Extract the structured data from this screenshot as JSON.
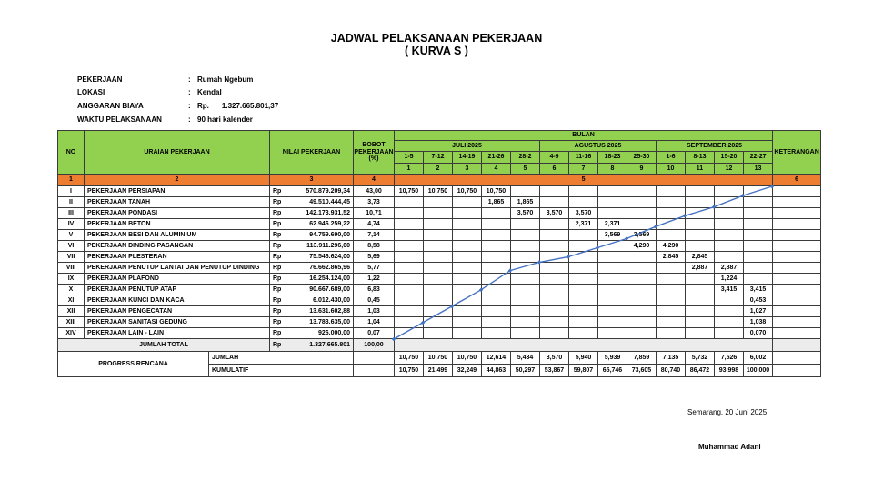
{
  "title": {
    "line1": "JADWAL PELAKSANAAN PEKERJAAN",
    "line2": "( KURVA S )"
  },
  "info": {
    "rows": [
      {
        "label": "PEKERJAAN",
        "colon": ":",
        "value": "Rumah Ngebum"
      },
      {
        "label": "LOKASI",
        "colon": ":",
        "value": "Kendal"
      },
      {
        "label": "ANGGARAN BIAYA",
        "colon": ":",
        "value": "Rp.",
        "value2": "1.327.665.801,37"
      },
      {
        "label": "WAKTU PELAKSANAAN",
        "colon": ":",
        "value": "90 hari kalender"
      }
    ]
  },
  "table": {
    "headers": {
      "no": "NO",
      "uraian": "URAIAN PEKERJAAN",
      "nilai": "NILAI PEKERJAAN",
      "bobot": "BOBOT PEKERJAAN (%)",
      "bulan": "BULAN",
      "keterangan": "KETERANGAN"
    },
    "months": [
      {
        "label": "JULI 2025",
        "span": 5
      },
      {
        "label": "AGUSTUS 2025",
        "span": 4
      },
      {
        "label": "SEPTEMBER 2025",
        "span": 4
      }
    ],
    "week_ranges": [
      "1-5",
      "7-12",
      "14-19",
      "21-26",
      "28-2",
      "4-9",
      "11-16",
      "18-23",
      "25-30",
      "1-6",
      "8-13",
      "15-20",
      "22-27"
    ],
    "week_numbers": [
      "1",
      "2",
      "3",
      "4",
      "5",
      "6",
      "7",
      "8",
      "9",
      "10",
      "11",
      "12",
      "13"
    ],
    "colnum_row": [
      "1",
      "2",
      "3",
      "4",
      "5",
      "6"
    ],
    "currency": "Rp",
    "rows": [
      {
        "no": "I",
        "uraian": "PEKERJAAN PERSIAPAN",
        "nilai": "570.879.209,34",
        "bobot": "43,00",
        "weeks": [
          "10,750",
          "10,750",
          "10,750",
          "10,750",
          "",
          "",
          "",
          "",
          "",
          "",
          "",
          "",
          ""
        ]
      },
      {
        "no": "II",
        "uraian": "PEKERJAAN TANAH",
        "nilai": "49.510.444,45",
        "bobot": "3,73",
        "weeks": [
          "",
          "",
          "",
          "1,865",
          "1,865",
          "",
          "",
          "",
          "",
          "",
          "",
          "",
          ""
        ]
      },
      {
        "no": "III",
        "uraian": "PEKERJAAN PONDASI",
        "nilai": "142.173.931,52",
        "bobot": "10,71",
        "weeks": [
          "",
          "",
          "",
          "",
          "3,570",
          "3,570",
          "3,570",
          "",
          "",
          "",
          "",
          "",
          ""
        ]
      },
      {
        "no": "IV",
        "uraian": "PEKERJAAN BETON",
        "nilai": "62.946.259,22",
        "bobot": "4,74",
        "weeks": [
          "",
          "",
          "",
          "",
          "",
          "",
          "2,371",
          "2,371",
          "",
          "",
          "",
          "",
          ""
        ]
      },
      {
        "no": "V",
        "uraian": "PEKERJAAN BESI DAN ALUMINIUM",
        "nilai": "94.759.690,00",
        "bobot": "7,14",
        "weeks": [
          "",
          "",
          "",
          "",
          "",
          "",
          "",
          "3,569",
          "3,569",
          "",
          "",
          "",
          ""
        ]
      },
      {
        "no": "VI",
        "uraian": "PEKERJAAN DINDING PASANGAN",
        "nilai": "113.911.296,00",
        "bobot": "8,58",
        "weeks": [
          "",
          "",
          "",
          "",
          "",
          "",
          "",
          "",
          "4,290",
          "4,290",
          "",
          "",
          ""
        ]
      },
      {
        "no": "VII",
        "uraian": "PEKERJAAN PLESTERAN",
        "nilai": "75.546.624,00",
        "bobot": "5,69",
        "weeks": [
          "",
          "",
          "",
          "",
          "",
          "",
          "",
          "",
          "",
          "2,845",
          "2,845",
          "",
          ""
        ]
      },
      {
        "no": "VIII",
        "uraian": "PEKERJAAN PENUTUP LANTAI DAN PENUTUP DINDING",
        "nilai": "76.662.865,96",
        "bobot": "5,77",
        "weeks": [
          "",
          "",
          "",
          "",
          "",
          "",
          "",
          "",
          "",
          "",
          "2,887",
          "2,887",
          ""
        ]
      },
      {
        "no": "IX",
        "uraian": "PEKERJAAN PLAFOND",
        "nilai": "16.254.124,00",
        "bobot": "1,22",
        "weeks": [
          "",
          "",
          "",
          "",
          "",
          "",
          "",
          "",
          "",
          "",
          "",
          "1,224",
          ""
        ]
      },
      {
        "no": "X",
        "uraian": "PEKERJAAN PENUTUP ATAP",
        "nilai": "90.667.689,00",
        "bobot": "6,83",
        "weeks": [
          "",
          "",
          "",
          "",
          "",
          "",
          "",
          "",
          "",
          "",
          "",
          "3,415",
          "3,415"
        ]
      },
      {
        "no": "XI",
        "uraian": "PEKERJAAN KUNCI DAN KACA",
        "nilai": "6.012.430,00",
        "bobot": "0,45",
        "weeks": [
          "",
          "",
          "",
          "",
          "",
          "",
          "",
          "",
          "",
          "",
          "",
          "",
          "0,453"
        ]
      },
      {
        "no": "XII",
        "uraian": "PEKERJAAN PENGECATAN",
        "nilai": "13.631.602,88",
        "bobot": "1,03",
        "weeks": [
          "",
          "",
          "",
          "",
          "",
          "",
          "",
          "",
          "",
          "",
          "",
          "",
          "1,027"
        ]
      },
      {
        "no": "XIII",
        "uraian": "PEKERJAAN SANITASI GEDUNG",
        "nilai": "13.783.635,00",
        "bobot": "1,04",
        "weeks": [
          "",
          "",
          "",
          "",
          "",
          "",
          "",
          "",
          "",
          "",
          "",
          "",
          "1,038"
        ]
      },
      {
        "no": "XIV",
        "uraian": "PEKERJAAN LAIN - LAIN",
        "nilai": "926.000,00",
        "bobot": "0,07",
        "weeks": [
          "",
          "",
          "",
          "",
          "",
          "",
          "",
          "",
          "",
          "",
          "",
          "",
          "0,070"
        ]
      }
    ],
    "total_row": {
      "label": "JUMLAH  TOTAL",
      "currency": "Rp",
      "nilai": "1.327.665.801",
      "bobot": "100,00"
    },
    "progress": {
      "label": "PROGRESS RENCANA",
      "jumlah_label": "JUMLAH",
      "kumulatif_label": "KUMULATIF",
      "jumlah": [
        "10,750",
        "10,750",
        "10,750",
        "12,614",
        "5,434",
        "3,570",
        "5,940",
        "5,939",
        "7,859",
        "7,135",
        "5,732",
        "7,526",
        "6,002"
      ],
      "kumulatif": [
        "10,750",
        "21,499",
        "32,249",
        "44,863",
        "50,297",
        "53,867",
        "59,807",
        "65,746",
        "73,605",
        "80,740",
        "86,472",
        "93,998",
        "100,000"
      ]
    }
  },
  "chart_data": {
    "type": "line",
    "title": "Kurva S - Progress Rencana Kumulatif (%)",
    "x": [
      0,
      1,
      2,
      3,
      4,
      5,
      6,
      7,
      8,
      9,
      10,
      11,
      12,
      13
    ],
    "series": [
      {
        "name": "KUMULATIF",
        "values": [
          0,
          10.75,
          21.499,
          32.249,
          44.863,
          50.297,
          53.867,
          59.807,
          65.746,
          73.605,
          80.74,
          86.472,
          93.998,
          100.0
        ]
      },
      {
        "name": "JUMLAH mingguan",
        "values": [
          10.75,
          10.75,
          10.75,
          12.614,
          5.434,
          3.57,
          5.94,
          5.939,
          7.859,
          7.135,
          5.732,
          7.526,
          6.002
        ]
      }
    ],
    "ylim": [
      0,
      100
    ],
    "grid": true,
    "legend_position": "none",
    "line_color": "#4472C4"
  },
  "footer": {
    "place_date": "Semarang, 20 Juni 2025",
    "signature_name": "Muhammad Adani"
  },
  "colors": {
    "header_green": "#92D050",
    "band_orange": "#ED7D31",
    "curve_blue": "#4472C4",
    "total_gray": "#ECECEC"
  }
}
